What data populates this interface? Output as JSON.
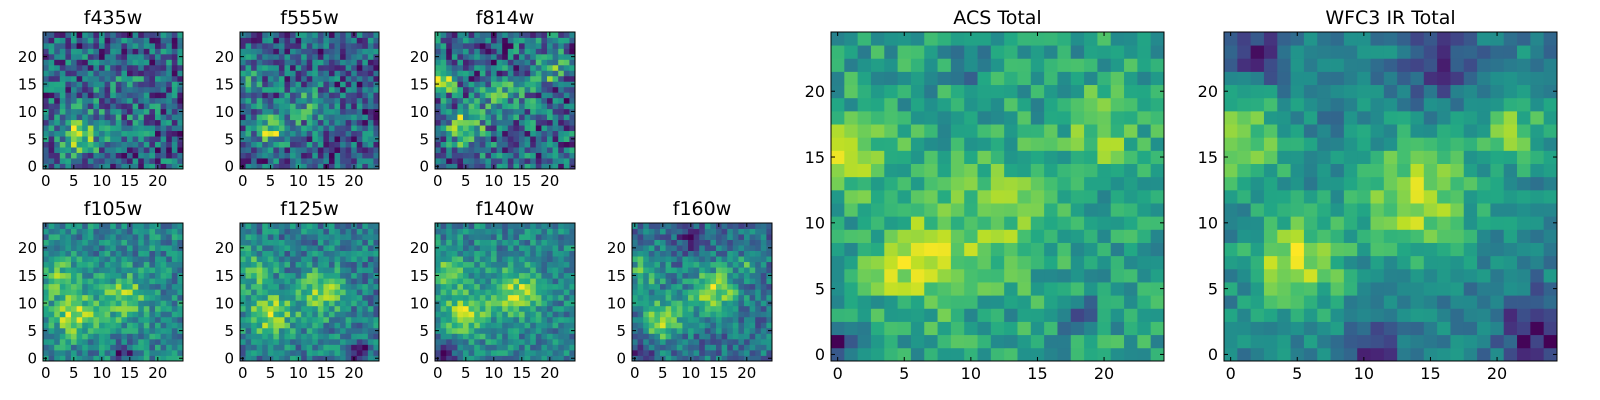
{
  "chart_data": [
    {
      "type": "heatmap",
      "title": "f435w",
      "size": "small",
      "grid_size": 25,
      "xlim": [
        0,
        24
      ],
      "ylim": [
        0,
        24
      ],
      "xticks": [
        0,
        5,
        10,
        15,
        20
      ],
      "yticks": [
        0,
        5,
        10,
        15,
        20
      ],
      "colormap": "viridis",
      "noise": 0.32,
      "base": 0.58,
      "blobs": [
        {
          "x": 6,
          "y": 6,
          "sigma": 2.5,
          "amp": 0.5
        },
        {
          "x": 14,
          "y": 12,
          "sigma": 4,
          "amp": 0.12
        }
      ],
      "dark_spots": []
    },
    {
      "type": "heatmap",
      "title": "f555w",
      "size": "small",
      "grid_size": 25,
      "xlim": [
        0,
        24
      ],
      "ylim": [
        0,
        24
      ],
      "xticks": [
        0,
        5,
        10,
        15,
        20
      ],
      "yticks": [
        0,
        5,
        10,
        15,
        20
      ],
      "colormap": "viridis",
      "noise": 0.3,
      "base": 0.5,
      "blobs": [
        {
          "x": 5,
          "y": 7,
          "sigma": 2.2,
          "amp": 0.5
        },
        {
          "x": 1,
          "y": 16,
          "sigma": 2,
          "amp": 0.25
        },
        {
          "x": 11,
          "y": 11,
          "sigma": 3,
          "amp": 0.22
        }
      ],
      "dark_spots": []
    },
    {
      "type": "heatmap",
      "title": "f814w",
      "size": "small",
      "grid_size": 25,
      "xlim": [
        0,
        24
      ],
      "ylim": [
        0,
        24
      ],
      "xticks": [
        0,
        5,
        10,
        15,
        20
      ],
      "yticks": [
        0,
        5,
        10,
        15,
        20
      ],
      "colormap": "viridis",
      "noise": 0.28,
      "base": 0.45,
      "blobs": [
        {
          "x": 5,
          "y": 7,
          "sigma": 2,
          "amp": 0.55
        },
        {
          "x": 1,
          "y": 16,
          "sigma": 2,
          "amp": 0.35
        },
        {
          "x": 20,
          "y": 18,
          "sigma": 2,
          "amp": 0.3
        },
        {
          "x": 12,
          "y": 12,
          "sigma": 3,
          "amp": 0.2
        }
      ],
      "dark_spots": []
    },
    {
      "type": "heatmap",
      "title": "f105w",
      "size": "small",
      "grid_size": 25,
      "xlim": [
        0,
        24
      ],
      "ylim": [
        0,
        24
      ],
      "xticks": [
        0,
        5,
        10,
        15,
        20
      ],
      "yticks": [
        0,
        5,
        10,
        15,
        20
      ],
      "colormap": "viridis",
      "noise": 0.24,
      "base": 0.42,
      "blobs": [
        {
          "x": 5,
          "y": 8,
          "sigma": 2.8,
          "amp": 0.5
        },
        {
          "x": 14,
          "y": 11,
          "sigma": 3,
          "amp": 0.42
        },
        {
          "x": 2,
          "y": 15,
          "sigma": 2.5,
          "amp": 0.3
        }
      ],
      "dark_spots": [
        {
          "x": 14,
          "y": 1,
          "sigma": 1.2,
          "amp": 0.45
        }
      ]
    },
    {
      "type": "heatmap",
      "title": "f125w",
      "size": "small",
      "grid_size": 25,
      "xlim": [
        0,
        24
      ],
      "ylim": [
        0,
        24
      ],
      "xticks": [
        0,
        5,
        10,
        15,
        20
      ],
      "yticks": [
        0,
        5,
        10,
        15,
        20
      ],
      "colormap": "viridis",
      "noise": 0.22,
      "base": 0.42,
      "blobs": [
        {
          "x": 5,
          "y": 8,
          "sigma": 2.8,
          "amp": 0.45
        },
        {
          "x": 14,
          "y": 12,
          "sigma": 3,
          "amp": 0.45
        },
        {
          "x": 2,
          "y": 16,
          "sigma": 2.5,
          "amp": 0.3
        }
      ],
      "dark_spots": [
        {
          "x": 21,
          "y": 1,
          "sigma": 1.5,
          "amp": 0.35
        }
      ]
    },
    {
      "type": "heatmap",
      "title": "f140w",
      "size": "small",
      "grid_size": 25,
      "xlim": [
        0,
        24
      ],
      "ylim": [
        0,
        24
      ],
      "xticks": [
        0,
        5,
        10,
        15,
        20
      ],
      "yticks": [
        0,
        5,
        10,
        15,
        20
      ],
      "colormap": "viridis",
      "noise": 0.2,
      "base": 0.45,
      "blobs": [
        {
          "x": 5,
          "y": 8,
          "sigma": 2.8,
          "amp": 0.45
        },
        {
          "x": 14,
          "y": 12,
          "sigma": 3,
          "amp": 0.45
        },
        {
          "x": 2,
          "y": 16,
          "sigma": 2.5,
          "amp": 0.3
        }
      ],
      "dark_spots": [
        {
          "x": 1,
          "y": 1,
          "sigma": 2,
          "amp": 0.4
        }
      ]
    },
    {
      "type": "heatmap",
      "title": "f160w",
      "size": "small",
      "grid_size": 25,
      "xlim": [
        0,
        24
      ],
      "ylim": [
        0,
        24
      ],
      "xticks": [
        0,
        5,
        10,
        15,
        20
      ],
      "yticks": [
        0,
        5,
        10,
        15,
        20
      ],
      "colormap": "viridis",
      "noise": 0.2,
      "base": 0.42,
      "blobs": [
        {
          "x": 5,
          "y": 7,
          "sigma": 2.5,
          "amp": 0.5
        },
        {
          "x": 14,
          "y": 12,
          "sigma": 3,
          "amp": 0.5
        },
        {
          "x": 2,
          "y": 16,
          "sigma": 2.5,
          "amp": 0.3
        },
        {
          "x": 20,
          "y": 17,
          "sigma": 1.5,
          "amp": 0.25
        }
      ],
      "dark_spots": [
        {
          "x": 10,
          "y": 22,
          "sigma": 1.5,
          "amp": 0.4
        },
        {
          "x": 1,
          "y": 1,
          "sigma": 1.5,
          "amp": 0.35
        }
      ]
    },
    {
      "type": "heatmap",
      "title": "ACS Total",
      "size": "large",
      "grid_size": 25,
      "xlim": [
        0,
        24
      ],
      "ylim": [
        0,
        24
      ],
      "xticks": [
        0,
        5,
        10,
        15,
        20
      ],
      "yticks": [
        0,
        5,
        10,
        15,
        20
      ],
      "colormap": "viridis",
      "noise": 0.2,
      "base": 0.45,
      "blobs": [
        {
          "x": 6,
          "y": 7,
          "sigma": 2.2,
          "amp": 0.5
        },
        {
          "x": 1,
          "y": 15,
          "sigma": 2,
          "amp": 0.4
        },
        {
          "x": 12,
          "y": 11,
          "sigma": 3.5,
          "amp": 0.25
        },
        {
          "x": 20,
          "y": 17,
          "sigma": 2,
          "amp": 0.3
        }
      ],
      "dark_spots": [
        {
          "x": 0,
          "y": 1,
          "sigma": 1,
          "amp": 0.5
        },
        {
          "x": 18,
          "y": 3,
          "sigma": 1,
          "amp": 0.4
        },
        {
          "x": 10,
          "y": 22,
          "sigma": 1,
          "amp": 0.3
        }
      ]
    },
    {
      "type": "heatmap",
      "title": "WFC3 IR Total",
      "size": "large",
      "grid_size": 25,
      "xlim": [
        0,
        24
      ],
      "ylim": [
        0,
        24
      ],
      "xticks": [
        0,
        5,
        10,
        15,
        20
      ],
      "yticks": [
        0,
        5,
        10,
        15,
        20
      ],
      "colormap": "viridis",
      "noise": 0.14,
      "base": 0.44,
      "blobs": [
        {
          "x": 5,
          "y": 7,
          "sigma": 2.5,
          "amp": 0.5
        },
        {
          "x": 14,
          "y": 12,
          "sigma": 3,
          "amp": 0.5
        },
        {
          "x": 1,
          "y": 16,
          "sigma": 2.5,
          "amp": 0.4
        },
        {
          "x": 21,
          "y": 17,
          "sigma": 2,
          "amp": 0.35
        }
      ],
      "dark_spots": [
        {
          "x": 23,
          "y": 2,
          "sigma": 1.8,
          "amp": 0.45
        },
        {
          "x": 16,
          "y": 22,
          "sigma": 2,
          "amp": 0.3
        },
        {
          "x": 2,
          "y": 23,
          "sigma": 1.5,
          "amp": 0.35
        },
        {
          "x": 11,
          "y": 0,
          "sigma": 1.5,
          "amp": 0.3
        }
      ]
    }
  ]
}
